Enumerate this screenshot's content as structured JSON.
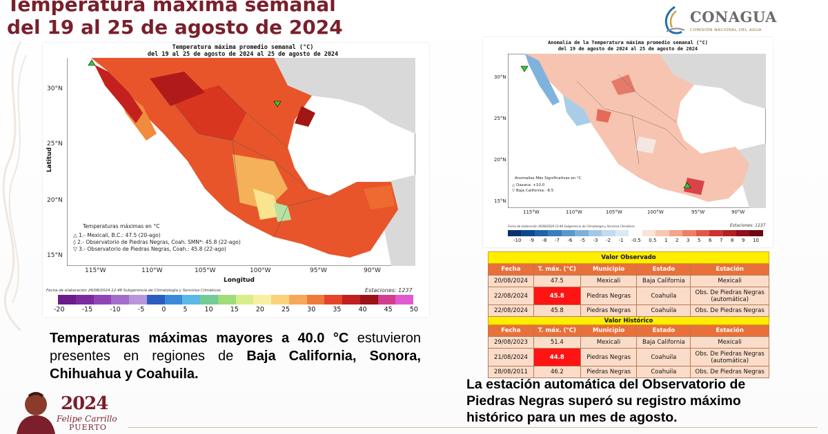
{
  "title": {
    "line1": "Temperatura máxima semanal",
    "line2": "del 19 al 25 de agosto de 2024"
  },
  "logo": {
    "name": "CONAGUA",
    "subtitle": "COMISIÓN NACIONAL DEL AGUA"
  },
  "left_map": {
    "title1": "Temperatura máxima promedio semanal (°C)",
    "title2": "del 19 al 25 de agosto de 2024 al 25 de agosto de 2024",
    "ylabel": "Latitud",
    "xlabel": "Longitud",
    "lat_ticks": [
      "30°N",
      "25°N",
      "20°N",
      "15°N"
    ],
    "lon_ticks": [
      "115°W",
      "110°W",
      "105°W",
      "100°W",
      "95°W",
      "90°W"
    ],
    "legend_title": "Temperaturas máximas en °C",
    "legend_items": [
      "1.- Mexicali, B.C.: 47.5 (20-ago)",
      "2.- Observatorio de Piedras Negras, Coah. SMN*: 45.8 (22-ago)",
      "3.- Observatorio de Piedras Negras, Coah.: 45.8 (22-ago)"
    ],
    "footer_left": "Fecha de elaboración 26/08/2024 12:48 Subgerencia de Climatología y Servicios Climáticos",
    "footer_right": "Estaciones: 1237",
    "colorbar_labels": [
      "-20",
      "-15",
      "-10",
      "-5",
      "0",
      "5",
      "10",
      "15",
      "20",
      "25",
      "30",
      "35",
      "40",
      "45",
      "50"
    ]
  },
  "right_map": {
    "title1": "Anomalía de la Temperatura máxima promedio semanal (°C)",
    "title2": "del 19 de agosto de 2024 al 25 de agosto de 2024",
    "lat_ticks": [
      "30°N",
      "25°N",
      "20°N",
      "15°N"
    ],
    "lon_ticks": [
      "115°W",
      "110°W",
      "105°W",
      "100°W",
      "95°W",
      "90°W"
    ],
    "legend_title": "Anomalías Más Significativas en °C",
    "legend_items": [
      "Oaxaca: +10.0",
      "Baja California: -8.5"
    ],
    "footer_left": "Fecha de elaboración 26/08/2024 12:48 Subgerencia de Climatología y Servicios Climáticos",
    "footer_right": "Estaciones: 1237",
    "colorbar_labels": [
      "-10",
      "-9",
      "-8",
      "-7",
      "-6",
      "-5",
      "-3",
      "-2",
      "-1",
      "-0.5",
      "0.5",
      "1",
      "2",
      "3",
      "5",
      "6",
      "7",
      "8",
      "9",
      "10"
    ]
  },
  "table": {
    "observed_title": "Valor Observado",
    "historic_title": "Valor Histórico",
    "headers": [
      "Fecha",
      "T. máx. (°C)",
      "Municipio",
      "Estado",
      "Estación"
    ],
    "observed_rows": [
      [
        "20/08/2024",
        "47.5",
        "Mexicali",
        "Baja California",
        "Mexicali"
      ],
      [
        "22/08/2024",
        "45.8",
        "Piedras Negras",
        "Coahuila",
        "Obs. De Piedras Negras (automática)"
      ],
      [
        "22/08/2024",
        "45.8",
        "Piedras Negras",
        "Coahuila",
        "Obs. De Piedras Negras"
      ]
    ],
    "historic_rows": [
      [
        "29/08/2023",
        "51.4",
        "Mexicali",
        "Baja California",
        "Mexicali"
      ],
      [
        "21/08/2024",
        "44.8",
        "Piedras Negras",
        "Coahuila",
        "Obs. De Piedras Negras (automática)"
      ],
      [
        "28/08/2011",
        "46.2",
        "Piedras Negras",
        "Coahuila",
        "Obs. De Piedras Negras"
      ]
    ]
  },
  "caption_left": {
    "bold1": "Temperaturas máximas mayores a 40.0 °C",
    "normal": "estuvieron presentes en regiones de",
    "bold2": "Baja",
    "bold3": "California, Sonora, Chihuahua y Coahuila."
  },
  "caption_right": {
    "line1": "La estación automática del Observatorio de",
    "line2": "Piedras Negras superó su registro máximo",
    "line3": "histórico para un mes de agosto."
  },
  "brand": {
    "year": "2024",
    "name": "Felipe Carrillo",
    "place": "PUERTO"
  },
  "colors": {
    "accent": "#7a1f2b",
    "table_header": "#e8703a",
    "table_title": "#ffee00",
    "hot_cell": "#ff1414"
  }
}
